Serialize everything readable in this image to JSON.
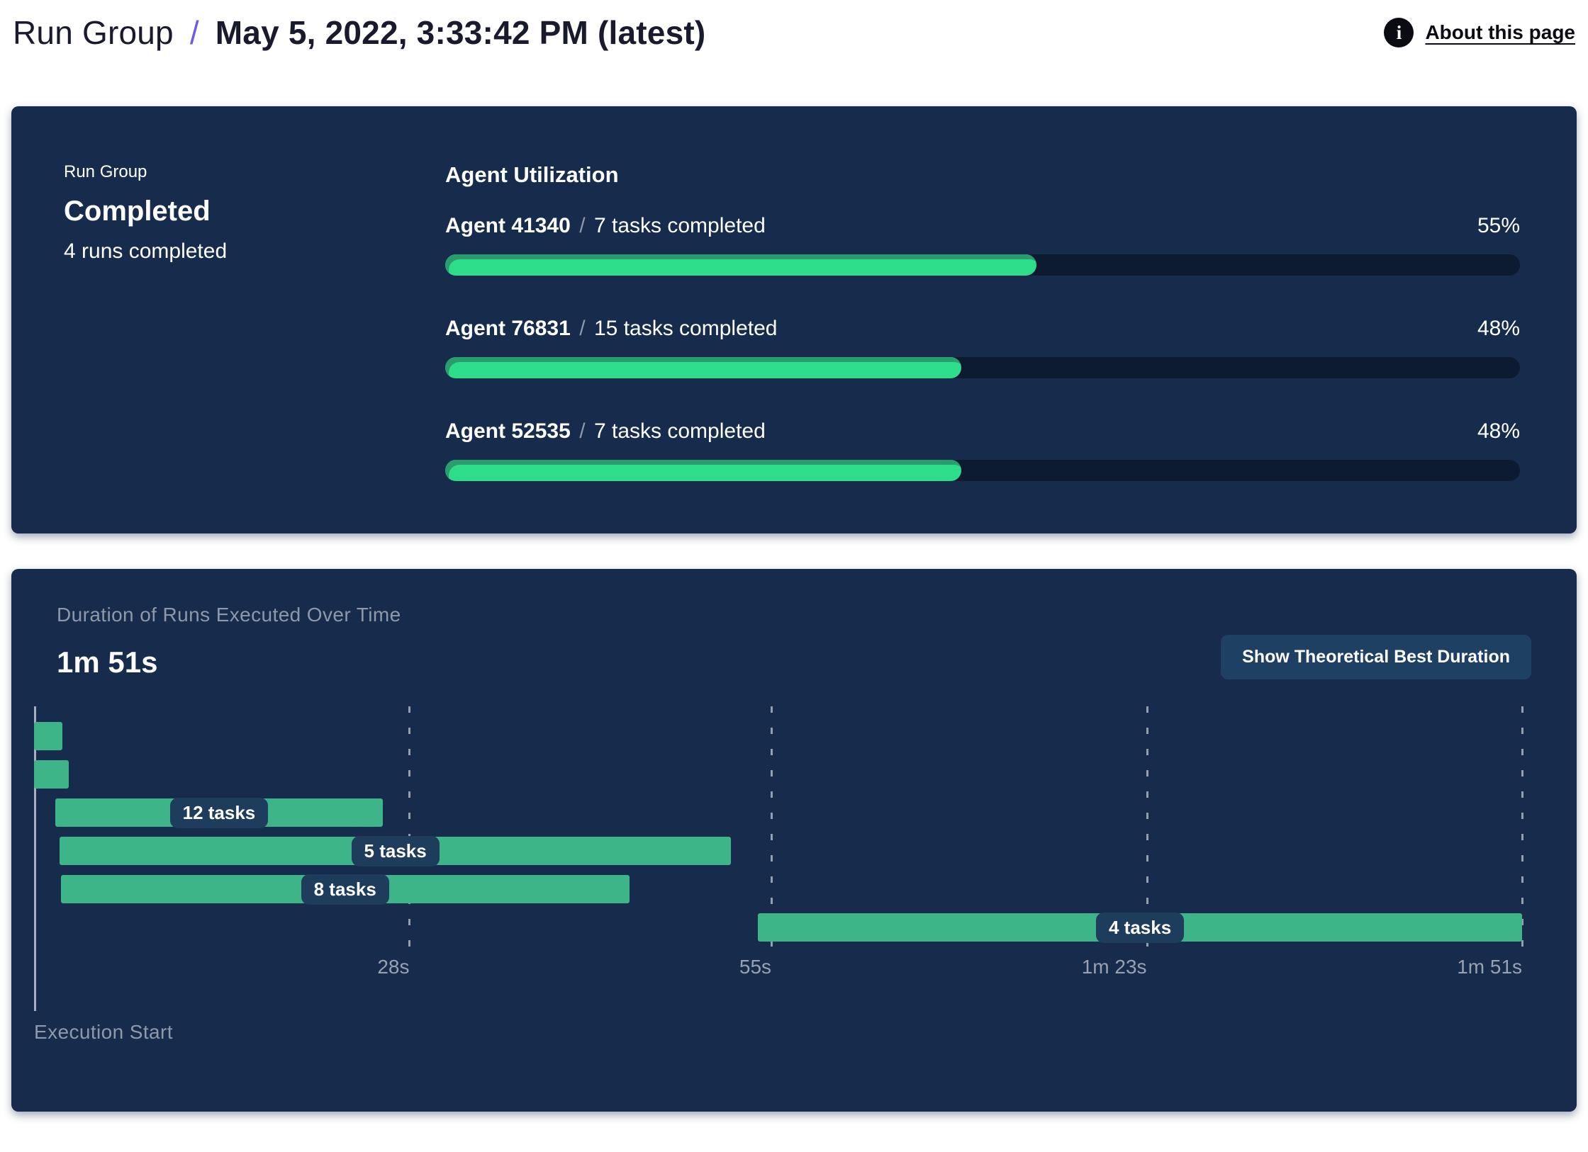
{
  "header": {
    "breadcrumb_root": "Run Group",
    "breadcrumb_separator": "/",
    "breadcrumb_current": "May 5, 2022, 3:33:42 PM (latest)",
    "info_icon_glyph": "i",
    "about_link_label": "About this page"
  },
  "run_group_panel": {
    "label": "Run Group",
    "status": "Completed",
    "runs_summary": "4 runs completed",
    "utilization_title": "Agent Utilization",
    "separator": "/",
    "agents": [
      {
        "name": "Agent 41340",
        "tasks": "7 tasks completed",
        "percent_label": "55%",
        "percent_value": 55
      },
      {
        "name": "Agent 76831",
        "tasks": "15 tasks completed",
        "percent_label": "48%",
        "percent_value": 48
      },
      {
        "name": "Agent 52535",
        "tasks": "7 tasks completed",
        "percent_label": "48%",
        "percent_value": 48
      }
    ]
  },
  "duration_panel": {
    "title": "Duration of Runs Executed Over Time",
    "total_duration": "1m 51s",
    "button_label": "Show Theoretical Best Duration",
    "axis_label": "Execution Start"
  },
  "chart_data": {
    "type": "gantt",
    "title": "Duration of Runs Executed Over Time",
    "total_duration_label": "1m 51s",
    "x_axis_label": "Execution Start",
    "x_unit": "seconds",
    "x_range": [
      0,
      113.8
    ],
    "ticks": [
      {
        "seconds": 28,
        "label": "28s"
      },
      {
        "seconds": 55,
        "label": "55s"
      },
      {
        "seconds": 83,
        "label": "1m 23s"
      },
      {
        "seconds": 111,
        "label": "1m 51s"
      }
    ],
    "runs": [
      {
        "start_seconds": 0,
        "end_seconds": 2.1,
        "label": null
      },
      {
        "start_seconds": 0,
        "end_seconds": 2.6,
        "label": null
      },
      {
        "start_seconds": 1.6,
        "end_seconds": 26,
        "label": "12 tasks"
      },
      {
        "start_seconds": 1.9,
        "end_seconds": 52,
        "label": "5 tasks"
      },
      {
        "start_seconds": 2,
        "end_seconds": 44.4,
        "label": "8 tasks"
      },
      {
        "start_seconds": 54,
        "end_seconds": 111,
        "label": "4 tasks"
      }
    ],
    "legend": false,
    "grid": "dashed-vertical"
  },
  "colors": {
    "panel_bg": "#172B4D",
    "accent_purple": "#6F5BE8",
    "progress_fill": "#2EDD89",
    "progress_fill_edge": "#2A9D6E",
    "progress_track": "#0D1B30",
    "gantt_bar": "#3EB489",
    "pill_bg": "#1E3C5C",
    "button_bg": "#1E4063",
    "muted_text": "#8D98AA"
  }
}
